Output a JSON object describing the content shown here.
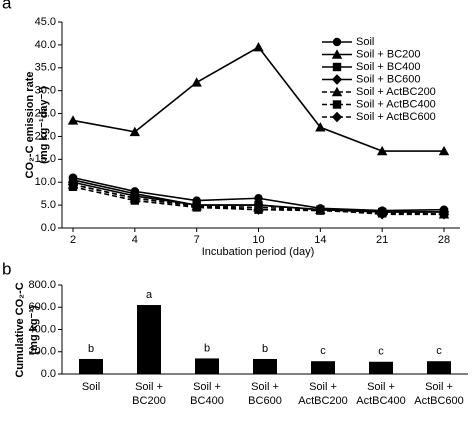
{
  "chart_data": [
    {
      "type": "line",
      "panel": "a",
      "ylabel": [
        "CO₂-C emission rate",
        "(mg kg⁻¹day⁻¹)"
      ],
      "xlabel": "Incubation period (day)",
      "categories": [
        "2",
        "4",
        "7",
        "10",
        "14",
        "21",
        "28"
      ],
      "ylim": [
        0,
        45
      ],
      "yticks": [
        {
          "value": 0,
          "label": "0.0"
        },
        {
          "value": 5,
          "label": "5.0"
        },
        {
          "value": 10,
          "label": "10.0"
        },
        {
          "value": 15,
          "label": "15.0"
        },
        {
          "value": 20,
          "label": "20.0"
        },
        {
          "value": 25,
          "label": "25.0"
        },
        {
          "value": 30,
          "label": "30.0"
        },
        {
          "value": 35,
          "label": "35.0"
        },
        {
          "value": 40,
          "label": "40.0"
        },
        {
          "value": 45,
          "label": "45.0"
        }
      ],
      "legend": "upper right",
      "series": [
        {
          "name": "Soil",
          "color": "#000000",
          "marker": "circle",
          "dashed": false,
          "values": [
            11.0,
            8.0,
            6.0,
            6.5,
            4.3,
            3.8,
            4.0
          ]
        },
        {
          "name": "Soil + BC200",
          "color": "#000000",
          "marker": "triangle",
          "dashed": false,
          "values": [
            23.5,
            21.0,
            31.8,
            39.5,
            22.0,
            16.8,
            16.8
          ]
        },
        {
          "name": "Soil + BC400",
          "color": "#000000",
          "marker": "square",
          "dashed": false,
          "values": [
            10.5,
            7.5,
            5.0,
            5.0,
            4.0,
            3.5,
            3.5
          ]
        },
        {
          "name": "Soil + BC600",
          "color": "#000000",
          "marker": "diamond",
          "dashed": false,
          "values": [
            10.0,
            7.0,
            5.0,
            5.0,
            4.0,
            3.5,
            3.5
          ]
        },
        {
          "name": "Soil + ActBC200",
          "color": "#000000",
          "marker": "triangle",
          "dashed": true,
          "values": [
            9.5,
            6.5,
            4.8,
            4.5,
            4.0,
            3.5,
            3.0
          ]
        },
        {
          "name": "Soil + ActBC400",
          "color": "#000000",
          "marker": "square",
          "dashed": true,
          "values": [
            9.0,
            6.0,
            4.5,
            4.0,
            3.8,
            3.2,
            3.0
          ]
        },
        {
          "name": "Soil + ActBC600",
          "color": "#000000",
          "marker": "diamond",
          "dashed": true,
          "values": [
            9.5,
            6.5,
            4.8,
            4.0,
            4.0,
            3.0,
            3.0
          ]
        }
      ]
    },
    {
      "type": "bar",
      "panel": "b",
      "ylabel": [
        "Cumulative CO₂-C",
        "(mg kg⁻¹)"
      ],
      "categories": [
        [
          "Soil"
        ],
        [
          "Soil +",
          "BC200"
        ],
        [
          "Soil +",
          "BC400"
        ],
        [
          "Soil +",
          "BC600"
        ],
        [
          "Soil +",
          "ActBC200"
        ],
        [
          "Soil +",
          "ActBC400"
        ],
        [
          "Soil +",
          "ActBC600"
        ]
      ],
      "values": [
        135,
        620,
        140,
        135,
        115,
        110,
        115
      ],
      "letters": [
        "b",
        "a",
        "b",
        "b",
        "c",
        "c",
        "c"
      ],
      "color": "#000000",
      "ylim": [
        0,
        800
      ],
      "yticks": [
        {
          "value": 0,
          "label": "0.0"
        },
        {
          "value": 200,
          "label": "200.0"
        },
        {
          "value": 400,
          "label": "400.0"
        },
        {
          "value": 600,
          "label": "600.0"
        },
        {
          "value": 800,
          "label": "800.0"
        }
      ]
    }
  ]
}
